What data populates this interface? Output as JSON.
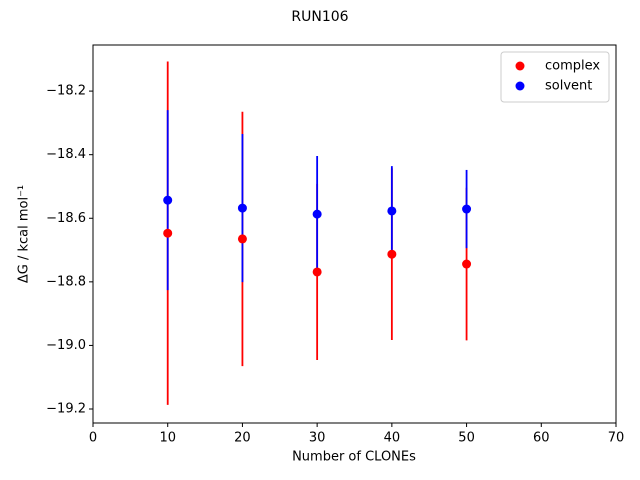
{
  "chart_data": {
    "type": "errorbar-scatter",
    "title": "RUN106",
    "x_label": "Number of CLONEs",
    "y_label": "ΔG / kcal mol⁻¹",
    "x": [
      10,
      20,
      30,
      40,
      50
    ],
    "series": [
      {
        "name": "complex",
        "color": "#ff0000",
        "values": [
          -18.647,
          -18.665,
          -18.769,
          -18.713,
          -18.744
        ],
        "errors": [
          0.54,
          0.4,
          0.277,
          0.27,
          0.24
        ]
      },
      {
        "name": "solvent",
        "color": "#0000ff",
        "values": [
          -18.543,
          -18.568,
          -18.587,
          -18.577,
          -18.571
        ],
        "errors": [
          0.283,
          0.233,
          0.183,
          0.141,
          0.123
        ]
      }
    ],
    "xlim": [
      0,
      70
    ],
    "xticks": [
      0,
      10,
      20,
      30,
      40,
      50,
      60,
      70
    ],
    "ylim": [
      -19.244,
      -18.055
    ],
    "yticks": [
      {
        "value": -19.2,
        "label": "−19.2"
      },
      {
        "value": -19.0,
        "label": "−19.0"
      },
      {
        "value": -18.8,
        "label": "−18.8"
      },
      {
        "value": -18.6,
        "label": "−18.6"
      },
      {
        "value": -18.4,
        "label": "−18.4"
      },
      {
        "value": -18.2,
        "label": "−18.2"
      }
    ],
    "grid": false,
    "legend": "upper right"
  }
}
